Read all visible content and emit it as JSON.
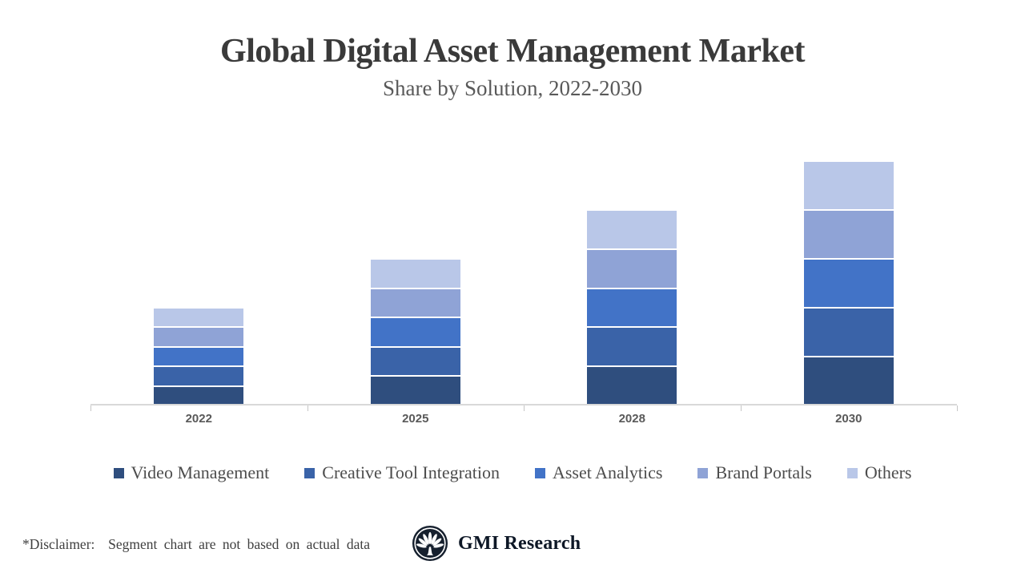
{
  "header": {
    "title": "Global Digital Asset Management Market",
    "subtitle": "Share by Solution, 2022-2030"
  },
  "chart_data": {
    "type": "bar",
    "stacked": true,
    "title": "Global Digital Asset Management Market",
    "subtitle": "Share by Solution, 2022-2030",
    "categories": [
      "2022",
      "2025",
      "2028",
      "2030"
    ],
    "series": [
      {
        "name": "Video Management",
        "color": "#2F4E7E",
        "values": [
          2,
          3,
          4,
          5
        ]
      },
      {
        "name": "Creative Tool Integration",
        "color": "#3A63A8",
        "values": [
          2,
          3,
          4,
          5
        ]
      },
      {
        "name": "Asset Analytics",
        "color": "#4273C7",
        "values": [
          2,
          3,
          4,
          5
        ]
      },
      {
        "name": "Brand Portals",
        "color": "#8FA3D6",
        "values": [
          2,
          3,
          4,
          5
        ]
      },
      {
        "name": "Others",
        "color": "#B9C7E8",
        "values": [
          2,
          3,
          4,
          5
        ]
      }
    ],
    "xlabel": "",
    "ylabel": "",
    "ylim": [
      0,
      26
    ],
    "y_axis_visible": false,
    "data_labels": false,
    "grid": false,
    "legend_position": "bottom",
    "units": "relative share (illustrative only, per disclaimer)"
  },
  "footer": {
    "disclaimer": "*Disclaimer:  Segment chart are not based on actual data",
    "brand": "GMI Research"
  },
  "colors": {
    "video_management": "#2F4E7E",
    "creative_tool_integration": "#3A63A8",
    "asset_analytics": "#4273C7",
    "brand_portals": "#8FA3D6",
    "others": "#B9C7E8",
    "axis_line": "#D9D9D9",
    "title_text": "#3A3A3A",
    "subtitle_text": "#595959",
    "legend_text": "#4D4D4D",
    "year_label_text": "#595959",
    "logo_navy": "#16202E"
  }
}
